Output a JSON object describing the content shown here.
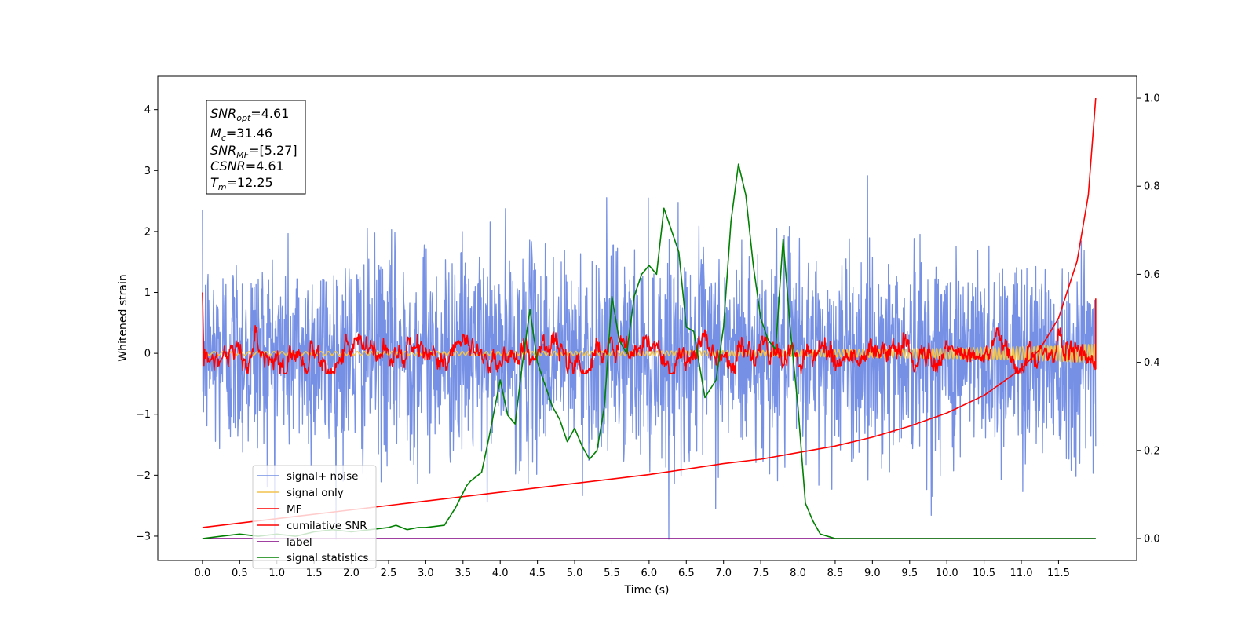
{
  "chart_data": {
    "type": "line",
    "xlabel": "Time (s)",
    "ylabel": "Whitened strain",
    "xlim": [
      -0.6,
      12.55
    ],
    "ylim_left": [
      -3.4,
      4.55
    ],
    "ylim_right": [
      -0.05,
      1.05
    ],
    "x_ticks": [
      "0.0",
      "0.5",
      "1.0",
      "1.5",
      "2.0",
      "2.5",
      "3.0",
      "3.5",
      "4.0",
      "4.5",
      "5.0",
      "5.5",
      "6.0",
      "6.5",
      "7.0",
      "7.5",
      "8.0",
      "8.5",
      "9.0",
      "9.5",
      "10.0",
      "10.5",
      "11.0",
      "11.5"
    ],
    "y_ticks_left": [
      "−3",
      "−2",
      "−1",
      "0",
      "1",
      "2",
      "3",
      "4"
    ],
    "y_ticks_right": [
      "0.0",
      "0.2",
      "0.4",
      "0.6",
      "0.8",
      "1.0"
    ],
    "annotation": {
      "snr_opt_main": "SNR",
      "snr_opt_sub": "opt",
      "snr_opt_value": "=4.61",
      "mc_main": "M",
      "mc_sub": "c",
      "mc_value": "=31.46",
      "snr_mf_main": "SNR",
      "snr_mf_sub": "MF",
      "snr_mf_value": "=[5.27]",
      "csnr_main": "CSNR",
      "csnr_value": "=4.61",
      "tm_main": "T",
      "tm_sub": "m",
      "tm_value": "=12.25"
    },
    "legend_position": "lower-left",
    "series": [
      {
        "name": "signal+ noise",
        "color": "#7590e4",
        "axis": "left",
        "style": "noise",
        "sigma": 0.85,
        "x_range": [
          0.0,
          12.0
        ]
      },
      {
        "name": "signal only",
        "color": "#f2c34e",
        "axis": "left",
        "style": "chirp",
        "x_range": [
          0.0,
          12.0
        ],
        "amplitude_start": 0.03,
        "amplitude_end": 0.15
      },
      {
        "name": "MF",
        "color": "#ff0000",
        "axis": "left",
        "style": "noise_smooth",
        "x_range": [
          0.0,
          12.0
        ],
        "sigma": 0.16,
        "x": [
          0.0,
          0.02
        ],
        "y": [
          1.0,
          -0.2
        ]
      },
      {
        "name": "cumilative SNR",
        "color": "#ff0000",
        "axis": "right",
        "x": [
          0.0,
          0.5,
          1.0,
          2.0,
          3.0,
          4.0,
          5.0,
          6.0,
          7.0,
          7.5,
          8.0,
          8.5,
          9.0,
          9.5,
          10.0,
          10.5,
          11.0,
          11.25,
          11.5,
          11.75,
          11.9,
          12.0
        ],
        "y": [
          0.025,
          0.035,
          0.045,
          0.065,
          0.085,
          0.105,
          0.125,
          0.145,
          0.17,
          0.18,
          0.195,
          0.21,
          0.23,
          0.255,
          0.285,
          0.325,
          0.385,
          0.43,
          0.5,
          0.63,
          0.78,
          1.0
        ]
      },
      {
        "name": "label",
        "color": "#800080",
        "axis": "right",
        "x": [
          0.0,
          12.0
        ],
        "y": [
          0.0,
          0.0
        ]
      },
      {
        "name": "signal statistics",
        "color": "#008000",
        "axis": "right",
        "x": [
          0.0,
          0.25,
          0.5,
          0.75,
          1.0,
          1.25,
          1.5,
          1.75,
          2.0,
          2.25,
          2.5,
          2.6,
          2.75,
          2.9,
          3.0,
          3.25,
          3.4,
          3.55,
          3.6,
          3.75,
          3.85,
          4.0,
          4.1,
          4.2,
          4.3,
          4.4,
          4.5,
          4.6,
          4.7,
          4.8,
          4.9,
          5.0,
          5.1,
          5.2,
          5.3,
          5.4,
          5.5,
          5.6,
          5.7,
          5.8,
          5.9,
          6.0,
          6.1,
          6.2,
          6.3,
          6.4,
          6.5,
          6.6,
          6.75,
          6.9,
          7.0,
          7.1,
          7.2,
          7.3,
          7.4,
          7.5,
          7.6,
          7.7,
          7.8,
          7.9,
          8.0,
          8.1,
          8.2,
          8.3,
          8.5,
          8.75,
          9.0,
          12.0
        ],
        "y": [
          0.0,
          0.005,
          0.01,
          0.005,
          0.01,
          0.005,
          0.015,
          0.02,
          0.015,
          0.02,
          0.025,
          0.03,
          0.02,
          0.025,
          0.025,
          0.03,
          0.07,
          0.12,
          0.13,
          0.15,
          0.23,
          0.36,
          0.28,
          0.26,
          0.4,
          0.52,
          0.4,
          0.35,
          0.3,
          0.27,
          0.22,
          0.25,
          0.21,
          0.18,
          0.2,
          0.3,
          0.55,
          0.45,
          0.42,
          0.55,
          0.6,
          0.62,
          0.6,
          0.75,
          0.7,
          0.65,
          0.48,
          0.47,
          0.32,
          0.36,
          0.48,
          0.72,
          0.85,
          0.78,
          0.62,
          0.5,
          0.45,
          0.43,
          0.68,
          0.47,
          0.3,
          0.08,
          0.04,
          0.01,
          0.0,
          0.0,
          0.0,
          0.0
        ]
      }
    ]
  }
}
